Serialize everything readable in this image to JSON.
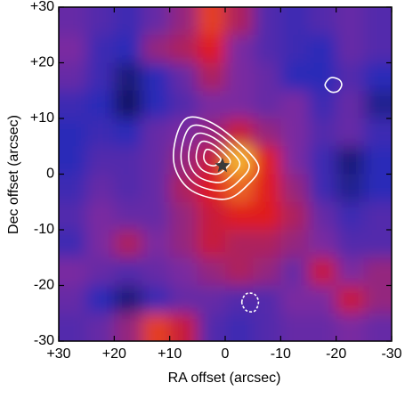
{
  "chart_data": {
    "type": "image",
    "xlabel": "RA offset (arcsec)",
    "ylabel": "Dec offset (arcsec)",
    "xlim": [
      30,
      -30
    ],
    "ylim": [
      -30,
      30
    ],
    "xticks": [
      {
        "value": 30,
        "label": "+30"
      },
      {
        "value": 20,
        "label": "+20"
      },
      {
        "value": 10,
        "label": "+10"
      },
      0,
      -10,
      -20,
      -30
    ],
    "yticks": [
      {
        "value": 30,
        "label": "+30"
      },
      {
        "value": 20,
        "label": "+20"
      },
      {
        "value": 10,
        "label": "+10"
      },
      0,
      -10,
      -20,
      -30
    ],
    "colorscale": [
      [
        0,
        "#0c0c3a"
      ],
      [
        0.3,
        "#2a2ab8"
      ],
      [
        0.5,
        "#7a2aa0"
      ],
      [
        0.7,
        "#e01a1a"
      ],
      [
        1,
        "#ffff3c"
      ]
    ],
    "x": [
      27.5,
      22.5,
      17.5,
      12.5,
      7.5,
      2.5,
      -2.5,
      -7.5,
      -12.5,
      -17.5,
      -22.5,
      -27.5
    ],
    "y": [
      27.5,
      22.5,
      17.5,
      12.5,
      7.5,
      2.5,
      -2.5,
      -7.5,
      -12.5,
      -17.5,
      -22.5,
      -27.5
    ],
    "z": [
      [
        0.45,
        0.4,
        0.35,
        0.45,
        0.55,
        0.75,
        0.6,
        0.4,
        0.35,
        0.4,
        0.45,
        0.4
      ],
      [
        0.5,
        0.35,
        0.3,
        0.55,
        0.6,
        0.7,
        0.5,
        0.4,
        0.35,
        0.3,
        0.45,
        0.4
      ],
      [
        0.45,
        0.35,
        0.15,
        0.3,
        0.45,
        0.6,
        0.5,
        0.45,
        0.3,
        0.3,
        0.4,
        0.3
      ],
      [
        0.35,
        0.3,
        0.1,
        0.3,
        0.4,
        0.5,
        0.5,
        0.45,
        0.5,
        0.35,
        0.45,
        0.2
      ],
      [
        0.3,
        0.35,
        0.3,
        0.45,
        0.5,
        0.55,
        0.65,
        0.55,
        0.5,
        0.4,
        0.45,
        0.35
      ],
      [
        0.3,
        0.4,
        0.4,
        0.45,
        0.55,
        0.65,
        0.9,
        0.7,
        0.5,
        0.35,
        0.15,
        0.3
      ],
      [
        0.35,
        0.45,
        0.4,
        0.45,
        0.6,
        0.7,
        0.8,
        0.7,
        0.55,
        0.35,
        0.2,
        0.3
      ],
      [
        0.4,
        0.5,
        0.45,
        0.45,
        0.55,
        0.65,
        0.7,
        0.7,
        0.6,
        0.45,
        0.35,
        0.4
      ],
      [
        0.35,
        0.5,
        0.6,
        0.5,
        0.55,
        0.65,
        0.6,
        0.6,
        0.55,
        0.5,
        0.4,
        0.4
      ],
      [
        0.5,
        0.45,
        0.4,
        0.45,
        0.5,
        0.55,
        0.6,
        0.55,
        0.45,
        0.65,
        0.5,
        0.55
      ],
      [
        0.45,
        0.3,
        0.15,
        0.35,
        0.45,
        0.45,
        0.4,
        0.4,
        0.5,
        0.5,
        0.65,
        0.55
      ],
      [
        0.4,
        0.45,
        0.55,
        0.75,
        0.65,
        0.4,
        0.35,
        0.4,
        0.45,
        0.45,
        0.5,
        0.45
      ]
    ],
    "contour_color": "#ffffff",
    "contours": [
      {
        "x": [
          9,
          7,
          3,
          -2,
          -6,
          -4,
          0,
          6,
          9
        ],
        "y": [
          6,
          10,
          9.5,
          6,
          1.5,
          -2,
          -4.5,
          -3,
          1
        ]
      },
      {
        "x": [
          7.7,
          6.1,
          2.9,
          -1.1,
          -4.3,
          -2.7,
          0.5,
          5.3,
          7.7
        ],
        "y": [
          5.4,
          8.6,
          8.2,
          5.4,
          1.8,
          -1,
          -3,
          -1.8,
          1.4
        ]
      },
      {
        "x": [
          6.4,
          5.2,
          2.8,
          -0.2,
          -2.6,
          -1.4,
          1,
          4.6,
          6.4
        ],
        "y": [
          4.8,
          7.2,
          6.9,
          4.8,
          2.1,
          0,
          -1.5,
          -0.6,
          1.8
        ]
      },
      {
        "x": [
          5.1,
          4.3,
          2.7,
          0.7,
          -0.9,
          -0.1,
          1.5,
          3.9,
          5.1
        ],
        "y": [
          4.2,
          5.8,
          5.6,
          4.2,
          2.4,
          1,
          0,
          0.6,
          2.2
        ]
      },
      {
        "x": [
          3.8,
          3.4,
          2.6,
          1.6,
          0.8,
          1.2,
          2,
          3.2,
          3.8
        ],
        "y": [
          3.6,
          4.4,
          4.3,
          3.6,
          2.7,
          2,
          1.5,
          1.8,
          2.6
        ]
      },
      {
        "x": [
          -18,
          -19,
          -20.5,
          -21,
          -20.3,
          -19
        ],
        "y": [
          16,
          17.3,
          17,
          16,
          14.9,
          14.8
        ]
      },
      {
        "x": [
          -3,
          -3.8,
          -5.3,
          -6,
          -5.3,
          -3.8
        ],
        "y": [
          -23,
          -21.5,
          -21.6,
          -23,
          -24.6,
          -24.5
        ],
        "dashed": true
      }
    ],
    "marker": {
      "x": 0.5,
      "y": 1.5,
      "color": "#3a3a3a"
    }
  }
}
